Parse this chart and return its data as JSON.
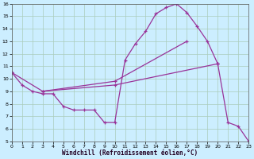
{
  "background_color": "#cceeff",
  "grid_color": "#aaccbb",
  "line_color": "#993399",
  "xlabel": "Windchill (Refroidissement éolien,°C)",
  "xlim": [
    0,
    23
  ],
  "ylim": [
    5,
    16
  ],
  "yticks": [
    5,
    6,
    7,
    8,
    9,
    10,
    11,
    12,
    13,
    14,
    15,
    16
  ],
  "xticks": [
    0,
    1,
    2,
    3,
    4,
    5,
    6,
    7,
    8,
    9,
    10,
    11,
    12,
    13,
    14,
    15,
    16,
    17,
    18,
    19,
    20,
    21,
    22,
    23
  ],
  "series": [
    {
      "x": [
        0,
        1,
        2,
        3,
        4,
        5,
        6,
        7,
        8,
        9,
        10,
        11,
        12,
        13,
        14,
        15,
        16,
        17,
        18,
        19,
        20
      ],
      "y": [
        10.5,
        9.5,
        9.0,
        8.8,
        8.8,
        7.8,
        7.5,
        7.5,
        7.5,
        6.5,
        6.5,
        11.5,
        12.8,
        13.8,
        15.2,
        15.7,
        16.0,
        15.3,
        14.2,
        13.0,
        11.2
      ]
    },
    {
      "x": [
        0,
        3,
        10,
        20
      ],
      "y": [
        10.5,
        9.0,
        9.5,
        11.2
      ]
    },
    {
      "x": [
        3,
        10,
        17
      ],
      "y": [
        9.0,
        9.8,
        13.0
      ]
    },
    {
      "x": [
        20,
        21,
        22,
        23
      ],
      "y": [
        11.2,
        6.5,
        6.2,
        5.0
      ]
    }
  ]
}
